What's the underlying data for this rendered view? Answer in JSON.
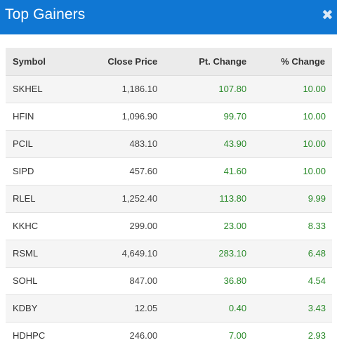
{
  "dialog": {
    "title": "Top Gainers",
    "close_label": "✖"
  },
  "table": {
    "headers": {
      "symbol": "Symbol",
      "close_price": "Close Price",
      "pt_change": "Pt. Change",
      "pct_change": "% Change"
    },
    "rows": [
      {
        "symbol": "SKHEL",
        "close_price": "1,186.10",
        "pt_change": "107.80",
        "pct_change": "10.00"
      },
      {
        "symbol": "HFIN",
        "close_price": "1,096.90",
        "pt_change": "99.70",
        "pct_change": "10.00"
      },
      {
        "symbol": "PCIL",
        "close_price": "483.10",
        "pt_change": "43.90",
        "pct_change": "10.00"
      },
      {
        "symbol": "SIPD",
        "close_price": "457.60",
        "pt_change": "41.60",
        "pct_change": "10.00"
      },
      {
        "symbol": "RLEL",
        "close_price": "1,252.40",
        "pt_change": "113.80",
        "pct_change": "9.99"
      },
      {
        "symbol": "KKHC",
        "close_price": "299.00",
        "pt_change": "23.00",
        "pct_change": "8.33"
      },
      {
        "symbol": "RSML",
        "close_price": "4,649.10",
        "pt_change": "283.10",
        "pct_change": "6.48"
      },
      {
        "symbol": "SOHL",
        "close_price": "847.00",
        "pt_change": "36.80",
        "pct_change": "4.54"
      },
      {
        "symbol": "KDBY",
        "close_price": "12.05",
        "pt_change": "0.40",
        "pct_change": "3.43"
      },
      {
        "symbol": "HDHPC",
        "close_price": "246.00",
        "pt_change": "7.00",
        "pct_change": "2.93"
      }
    ]
  },
  "colors": {
    "header_bg": "#1077d3",
    "positive": "#2a8a2a"
  }
}
